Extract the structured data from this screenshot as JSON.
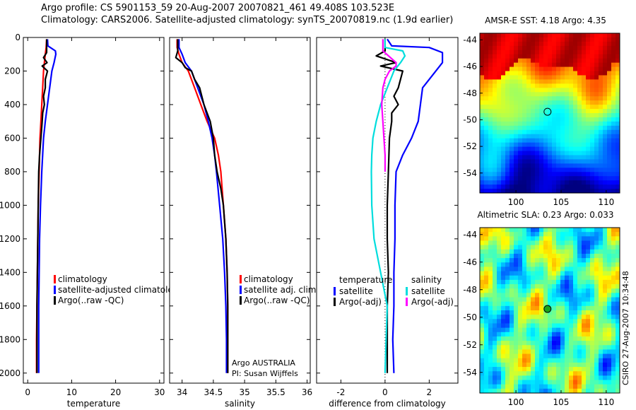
{
  "figure": {
    "title_line1": "Argo profile: CS 5901153_59 20-Aug-2007 20070821_461 49.408S 103.523E",
    "title_line2": "Climatology: CARS2006. Satellite-adjusted climatology: synTS_20070819.nc (1.9d earlier)",
    "side_stamp": "CSIRO 27-Aug-2007 10:34:48"
  },
  "chart_data": [
    {
      "type": "line",
      "xlabel": "temperature",
      "xlim": [
        -1,
        31
      ],
      "xticks": [
        0,
        10,
        20,
        30
      ],
      "ylim": [
        0,
        2060
      ],
      "yticks": [
        0,
        200,
        400,
        600,
        800,
        1000,
        1200,
        1400,
        1600,
        1800,
        2000
      ],
      "y_reversed": true,
      "legend": [
        "climatology",
        "satellite-adjusted climatology",
        "Argo(..raw -QC)"
      ],
      "legend_placement": "lower-right",
      "series": [
        {
          "name": "climatology",
          "color": "#ff0000",
          "points": [
            [
              4.3,
              10
            ],
            [
              4.2,
              60
            ],
            [
              4.0,
              100
            ],
            [
              3.8,
              150
            ],
            [
              3.6,
              200
            ],
            [
              3.4,
              300
            ],
            [
              3.2,
              400
            ],
            [
              3.0,
              500
            ],
            [
              2.8,
              600
            ],
            [
              2.6,
              800
            ],
            [
              2.4,
              1000
            ],
            [
              2.3,
              1200
            ],
            [
              2.2,
              1400
            ],
            [
              2.1,
              1600
            ],
            [
              2.0,
              1800
            ],
            [
              2.0,
              2000
            ]
          ]
        },
        {
          "name": "satellite-adjusted climatology",
          "color": "#0000ff",
          "points": [
            [
              4.5,
              10
            ],
            [
              4.6,
              50
            ],
            [
              6.3,
              80
            ],
            [
              6.4,
              100
            ],
            [
              6.0,
              150
            ],
            [
              5.5,
              200
            ],
            [
              5.0,
              300
            ],
            [
              4.5,
              400
            ],
            [
              4.0,
              500
            ],
            [
              3.6,
              600
            ],
            [
              3.2,
              800
            ],
            [
              2.9,
              1000
            ],
            [
              2.7,
              1200
            ],
            [
              2.6,
              1400
            ],
            [
              2.5,
              1600
            ],
            [
              2.5,
              1800
            ],
            [
              2.5,
              2000
            ]
          ]
        },
        {
          "name": "Argo(..raw -QC)",
          "color": "#000000",
          "points": [
            [
              4.3,
              10
            ],
            [
              4.3,
              90
            ],
            [
              3.6,
              120
            ],
            [
              4.4,
              150
            ],
            [
              3.3,
              170
            ],
            [
              4.5,
              200
            ],
            [
              4.0,
              250
            ],
            [
              4.0,
              300
            ],
            [
              3.6,
              350
            ],
            [
              3.8,
              400
            ],
            [
              3.4,
              450
            ],
            [
              3.3,
              500
            ],
            [
              3.0,
              600
            ],
            [
              2.7,
              700
            ],
            [
              2.5,
              800
            ],
            [
              2.4,
              1000
            ],
            [
              2.3,
              1200
            ],
            [
              2.2,
              1400
            ],
            [
              2.1,
              1600
            ],
            [
              2.1,
              1800
            ],
            [
              2.1,
              2000
            ]
          ]
        }
      ]
    },
    {
      "type": "line",
      "xlabel": "salinity",
      "xlim": [
        33.8,
        36.05
      ],
      "xticks": [
        34,
        34.5,
        35,
        35.5,
        36
      ],
      "ylim": [
        0,
        2060
      ],
      "y_reversed": true,
      "legend": [
        "climatology",
        "satellite adj. clim.",
        "Argo(..raw -QC)"
      ],
      "legend_placement": "lower-right",
      "annotation_line1": "Argo AUSTRALIA",
      "annotation_line2": "PI: Susan Wijffels",
      "series": [
        {
          "name": "climatology",
          "color": "#ff0000",
          "points": [
            [
              33.92,
              10
            ],
            [
              33.92,
              60
            ],
            [
              33.95,
              100
            ],
            [
              34.0,
              150
            ],
            [
              34.1,
              200
            ],
            [
              34.2,
              300
            ],
            [
              34.3,
              400
            ],
            [
              34.4,
              500
            ],
            [
              34.52,
              600
            ],
            [
              34.58,
              700
            ],
            [
              34.62,
              800
            ],
            [
              34.66,
              1000
            ],
            [
              34.7,
              1200
            ],
            [
              34.72,
              1400
            ],
            [
              34.73,
              1600
            ],
            [
              34.73,
              1800
            ],
            [
              34.73,
              2000
            ]
          ]
        },
        {
          "name": "satellite adj. clim.",
          "color": "#0000ff",
          "points": [
            [
              33.95,
              10
            ],
            [
              33.95,
              60
            ],
            [
              34.0,
              100
            ],
            [
              34.05,
              150
            ],
            [
              34.15,
              200
            ],
            [
              34.25,
              300
            ],
            [
              34.35,
              400
            ],
            [
              34.42,
              500
            ],
            [
              34.48,
              600
            ],
            [
              34.52,
              700
            ],
            [
              34.55,
              800
            ],
            [
              34.6,
              1000
            ],
            [
              34.65,
              1200
            ],
            [
              34.68,
              1400
            ],
            [
              34.7,
              1600
            ],
            [
              34.71,
              1800
            ],
            [
              34.71,
              2000
            ]
          ]
        },
        {
          "name": "Argo(..raw -QC)",
          "color": "#000000",
          "points": [
            [
              33.93,
              10
            ],
            [
              33.93,
              80
            ],
            [
              33.9,
              120
            ],
            [
              34.0,
              150
            ],
            [
              34.05,
              180
            ],
            [
              34.15,
              200
            ],
            [
              34.2,
              250
            ],
            [
              34.28,
              300
            ],
            [
              34.35,
              400
            ],
            [
              34.45,
              500
            ],
            [
              34.5,
              600
            ],
            [
              34.52,
              700
            ],
            [
              34.56,
              800
            ],
            [
              34.62,
              900
            ],
            [
              34.66,
              1000
            ],
            [
              34.7,
              1200
            ],
            [
              34.72,
              1400
            ],
            [
              34.73,
              1600
            ],
            [
              34.73,
              1800
            ],
            [
              34.73,
              2000
            ]
          ]
        }
      ]
    },
    {
      "type": "line",
      "xlabel": "difference from climatology",
      "xlim": [
        -3.1,
        3.3
      ],
      "xticks": [
        -2,
        0,
        2
      ],
      "ylim": [
        0,
        2060
      ],
      "y_reversed": true,
      "zero_line": "dotted",
      "legend_col1_title": "temperature",
      "legend_col2_title": "salinity",
      "legend": [
        "satellite",
        "Argo(-adj)",
        "satellite",
        "Argo(-adj)"
      ],
      "legend_placement": "lower-center",
      "series": [
        {
          "name": "temperature satellite",
          "color": "#0000ff",
          "points": [
            [
              0.1,
              10
            ],
            [
              0.3,
              50
            ],
            [
              2.0,
              60
            ],
            [
              2.6,
              90
            ],
            [
              2.6,
              150
            ],
            [
              2.0,
              250
            ],
            [
              1.7,
              300
            ],
            [
              1.6,
              400
            ],
            [
              1.5,
              500
            ],
            [
              1.2,
              600
            ],
            [
              0.8,
              700
            ],
            [
              0.5,
              800
            ],
            [
              0.45,
              1000
            ],
            [
              0.45,
              1200
            ],
            [
              0.4,
              1400
            ],
            [
              0.4,
              1600
            ],
            [
              0.35,
              1800
            ],
            [
              0.4,
              2000
            ]
          ]
        },
        {
          "name": "temperature Argo(-adj)",
          "color": "#000000",
          "points": [
            [
              0.0,
              10
            ],
            [
              0.0,
              80
            ],
            [
              -0.4,
              110
            ],
            [
              0.5,
              150
            ],
            [
              -0.2,
              170
            ],
            [
              0.8,
              200
            ],
            [
              0.6,
              300
            ],
            [
              0.4,
              350
            ],
            [
              0.6,
              400
            ],
            [
              0.3,
              450
            ],
            [
              0.3,
              500
            ],
            [
              0.2,
              600
            ],
            [
              0.15,
              800
            ],
            [
              0.1,
              1000
            ],
            [
              0.1,
              1200
            ],
            [
              0.15,
              1400
            ],
            [
              0.1,
              1600
            ],
            [
              0.1,
              1800
            ],
            [
              0.1,
              2000
            ]
          ]
        },
        {
          "name": "salinity satellite",
          "color": "#00dddd",
          "points": [
            [
              0.0,
              10
            ],
            [
              0.0,
              60
            ],
            [
              0.8,
              80
            ],
            [
              0.9,
              110
            ],
            [
              0.7,
              150
            ],
            [
              0.4,
              200
            ],
            [
              0.1,
              300
            ],
            [
              -0.2,
              400
            ],
            [
              -0.4,
              500
            ],
            [
              -0.55,
              600
            ],
            [
              -0.6,
              700
            ],
            [
              -0.62,
              800
            ],
            [
              -0.6,
              1000
            ],
            [
              -0.5,
              1200
            ],
            [
              -0.2,
              1400
            ],
            [
              0.1,
              1600
            ],
            [
              0.05,
              1800
            ],
            [
              0.0,
              2000
            ]
          ]
        },
        {
          "name": "salinity Argo(-adj)",
          "color": "#ff00ff",
          "points": [
            [
              -0.1,
              10
            ],
            [
              -0.1,
              80
            ],
            [
              0.5,
              150
            ],
            [
              0.5,
              170
            ],
            [
              0.2,
              200
            ],
            [
              0.0,
              250
            ],
            [
              -0.1,
              300
            ],
            [
              -0.15,
              400
            ],
            [
              -0.1,
              500
            ],
            [
              -0.05,
              600
            ],
            [
              0.0,
              700
            ],
            [
              0.0,
              800
            ]
          ]
        }
      ]
    },
    {
      "type": "heatmap",
      "title": "AMSR-E SST: 4.18 Argo: 4.35",
      "xlim": [
        96,
        111.5
      ],
      "xticks": [
        100,
        105,
        110
      ],
      "ylim": [
        -55.5,
        -43.5
      ],
      "yticks": [
        -44,
        -46,
        -48,
        -50,
        -52,
        -54
      ],
      "marker": {
        "lon": 103.5,
        "lat": -49.4
      }
    },
    {
      "type": "heatmap",
      "title": "Altimetric SLA: 0.23 Argo: 0.033",
      "xlim": [
        96,
        111.5
      ],
      "xticks": [
        100,
        105,
        110
      ],
      "ylim": [
        -55.5,
        -43.5
      ],
      "yticks": [
        -44,
        -46,
        -48,
        -50,
        -52,
        -54
      ],
      "marker": {
        "lon": 103.5,
        "lat": -49.4
      }
    }
  ]
}
